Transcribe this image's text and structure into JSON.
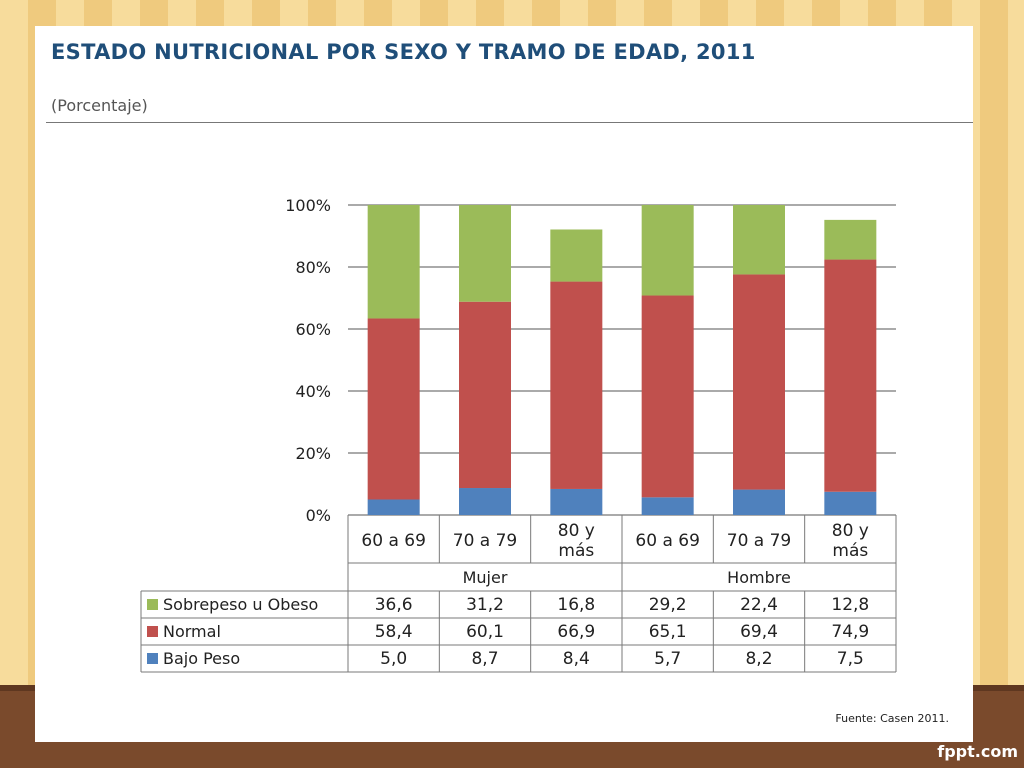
{
  "slide": {
    "title": "ESTADO NUTRICIONAL POR SEXO Y TRAMO DE EDAD, 2011",
    "subtitle": "(Porcentaje)",
    "source": "Fuente: Casen 2011.",
    "brand": "fppt.com"
  },
  "chart_data": {
    "type": "bar",
    "stacked": true,
    "ylim": [
      0,
      100
    ],
    "y_ticks": [
      "0%",
      "20%",
      "40%",
      "60%",
      "80%",
      "100%"
    ],
    "y_tick_values": [
      0,
      20,
      40,
      60,
      80,
      100
    ],
    "categories": [
      "60 a 69",
      "70 a 79",
      "80 y más",
      "60 a 69",
      "70 a 79",
      "80 y más"
    ],
    "groups": [
      {
        "label": "Mujer",
        "span": 3
      },
      {
        "label": "Hombre",
        "span": 3
      }
    ],
    "series": [
      {
        "name": "Sobrepeso u Obeso",
        "color": "#9bbb59",
        "values": [
          36.6,
          31.2,
          16.8,
          29.2,
          22.4,
          12.8
        ],
        "labels": [
          "36,6",
          "31,2",
          "16,8",
          "29,2",
          "22,4",
          "12,8"
        ]
      },
      {
        "name": "Normal",
        "color": "#c0504d",
        "values": [
          58.4,
          60.1,
          66.9,
          65.1,
          69.4,
          74.9
        ],
        "labels": [
          "58,4",
          "60,1",
          "66,9",
          "65,1",
          "69,4",
          "74,9"
        ]
      },
      {
        "name": "Bajo Peso",
        "color": "#4f81bd",
        "values": [
          5.0,
          8.7,
          8.4,
          5.7,
          8.2,
          7.5
        ],
        "labels": [
          "5,0",
          "8,7",
          "8,4",
          "5,7",
          "8,2",
          "7,5"
        ]
      }
    ],
    "grid": true,
    "legend": "table-left"
  }
}
